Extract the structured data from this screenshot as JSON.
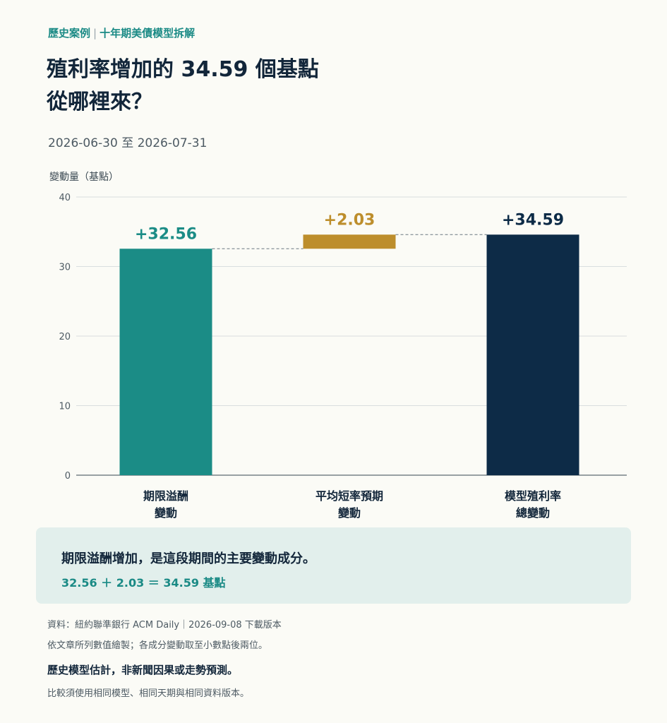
{
  "header": {
    "kicker_left": "歷史案例",
    "kicker_sep": "|",
    "kicker_right": "十年期美債模型拆解",
    "title_line1": "殖利率增加的 34.59 個基點",
    "title_line2": "從哪裡來？",
    "date_range": "2026-06-30 至 2026-07-31"
  },
  "colors": {
    "teal": "#1b8c86",
    "gold": "#bd8e2c",
    "navy": "#0d2b47",
    "grid": "#d9dedf",
    "axis": "#5c6a72"
  },
  "chart_data": {
    "type": "waterfall",
    "ylabel": "變動量（基點）",
    "ylim": [
      0,
      40
    ],
    "yticks": [
      0,
      10,
      20,
      30,
      40
    ],
    "grid": true,
    "bars": [
      {
        "label_lines": [
          "期限溢酬",
          "變動"
        ],
        "value": 32.56,
        "start": 0,
        "end": 32.56,
        "label": "+32.56",
        "color": "#1b8c86"
      },
      {
        "label_lines": [
          "平均短率預期",
          "變動"
        ],
        "value": 2.03,
        "start": 32.56,
        "end": 34.59,
        "label": "+2.03",
        "color": "#bd8e2c"
      },
      {
        "label_lines": [
          "模型殖利率",
          "總變動"
        ],
        "value": 34.59,
        "start": 0,
        "end": 34.59,
        "label": "+34.59",
        "color": "#0d2b47"
      }
    ]
  },
  "summary": {
    "headline": "期限溢酬增加，是這段期間的主要變動成分。",
    "equation": "32.56 ＋ 2.03 ＝ 34.59 基點"
  },
  "footer": {
    "source": "資料：紐約聯準銀行 ACM Daily｜2026-09-08 下載版本",
    "note": "依文章所列數值繪製；各成分變動取至小數點後兩位。",
    "disclaimer": "歷史模型估計，非新聞因果或走勢預測。",
    "comparison_note": "比較須使用相同模型、相同天期與相同資料版本。"
  }
}
